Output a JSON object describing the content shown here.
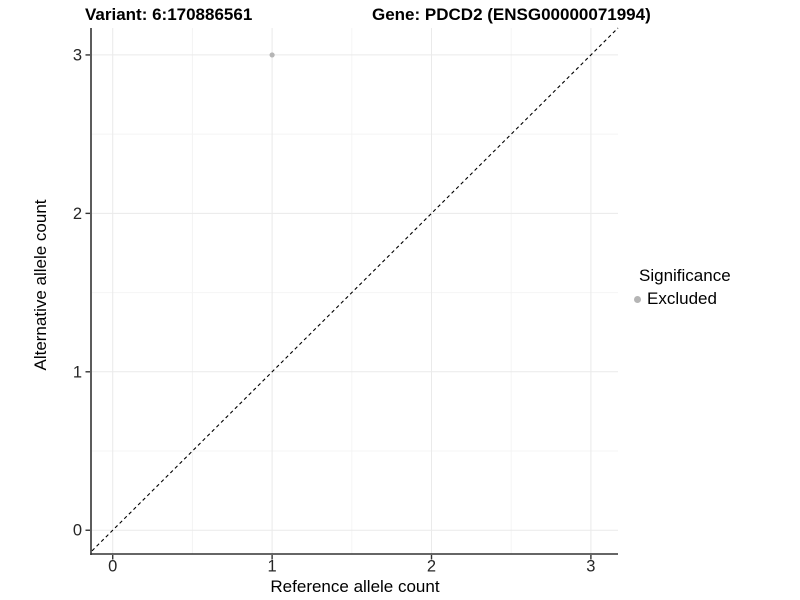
{
  "figure": {
    "title_left": "Variant: 6:170886561",
    "title_right": "Gene: PDCD2 (ENSG00000071994)"
  },
  "chart_data": {
    "type": "scatter",
    "xlabel": "Reference allele count",
    "ylabel": "Alternative allele count",
    "xlim": [
      -0.13,
      3.17
    ],
    "ylim": [
      -0.15,
      3.17
    ],
    "x_ticks": [
      0,
      1,
      2,
      3
    ],
    "y_ticks": [
      0,
      1,
      2,
      3
    ],
    "minor_breaks": [
      0.5,
      1.5,
      2.5
    ],
    "grid": true,
    "points": [
      {
        "x": 1,
        "y": 3,
        "significance": "Excluded",
        "color": "#b5b5b5"
      }
    ],
    "reference_line": {
      "slope": 1,
      "intercept": 0,
      "linetype": "dashed",
      "color": "#000000"
    },
    "legend": {
      "title": "Significance",
      "position": "right",
      "items": [
        {
          "label": "Excluded",
          "color": "#b5b5b5"
        }
      ]
    }
  },
  "colors": {
    "background": "#ffffff",
    "grid_major": "#eaeaea",
    "grid_minor": "#f4f4f4",
    "axis_line": "#333333",
    "tick_text": "#262626",
    "title_text": "#000000",
    "point": "#b5b5b5"
  }
}
